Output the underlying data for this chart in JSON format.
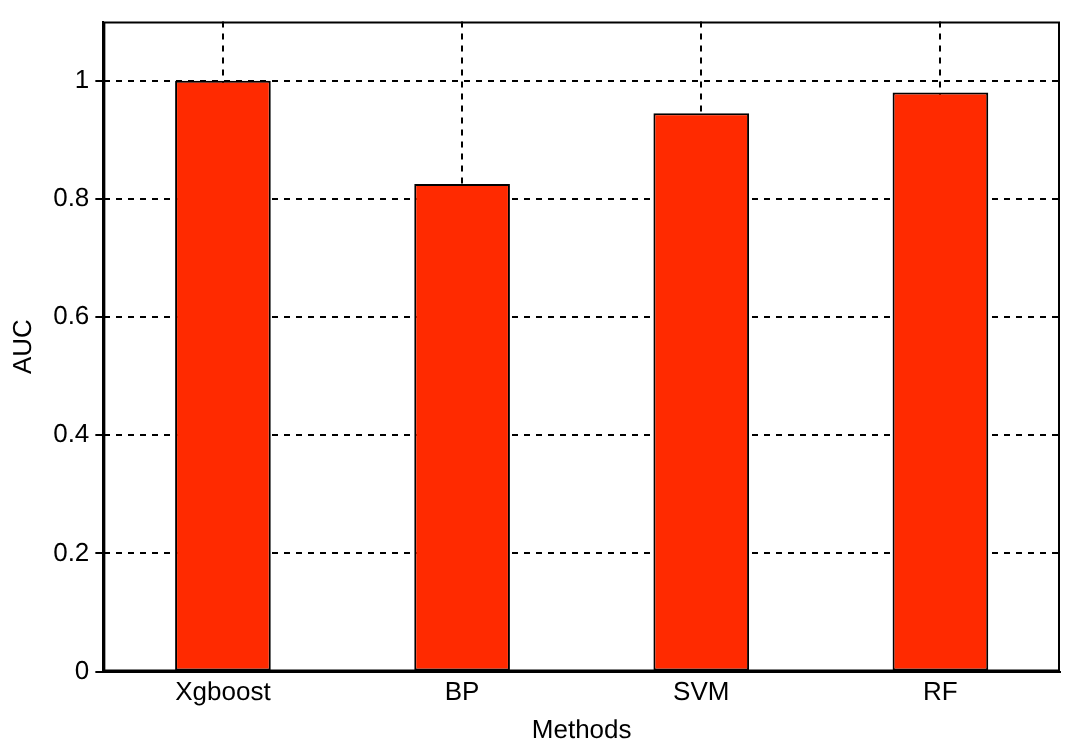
{
  "chart_data": {
    "type": "bar",
    "xlabel": "Methods",
    "ylabel": "AUC",
    "categories": [
      "Xgboost",
      "BP",
      "SVM",
      "RF"
    ],
    "values": [
      1.0,
      0.825,
      0.945,
      0.98
    ],
    "color": "#ff2a00",
    "ylim": [
      0,
      1.1
    ],
    "yticks": [
      0,
      0.2,
      0.4,
      0.6,
      0.8,
      1
    ],
    "grid": true,
    "legend": false
  }
}
